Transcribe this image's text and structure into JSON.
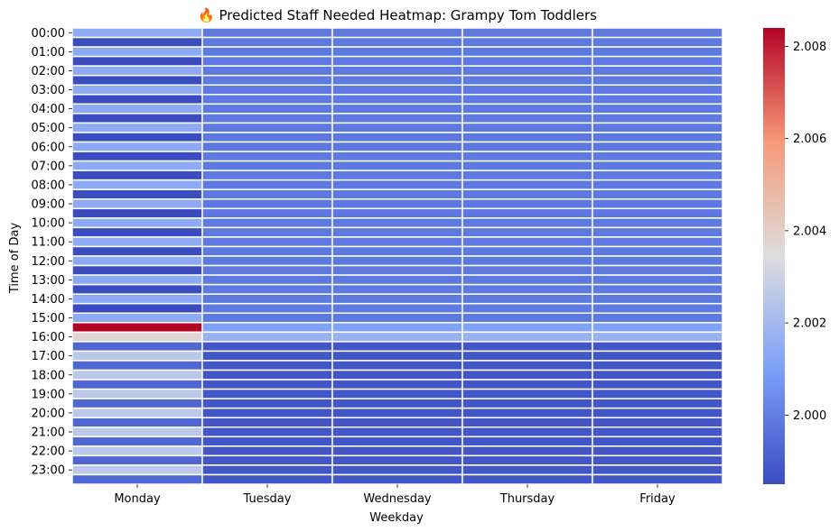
{
  "chart_data": {
    "type": "heatmap",
    "title": "🔥 Predicted Staff Needed Heatmap: Grampy Tom Toddlers",
    "xlabel": "Weekday",
    "ylabel": "Time of Day",
    "x_categories": [
      "Monday",
      "Tuesday",
      "Wednesday",
      "Thursday",
      "Friday"
    ],
    "y_tick_labels": [
      "00:00",
      "01:00",
      "02:00",
      "03:00",
      "04:00",
      "05:00",
      "06:00",
      "07:00",
      "08:00",
      "09:00",
      "10:00",
      "11:00",
      "12:00",
      "13:00",
      "14:00",
      "15:00",
      "16:00",
      "17:00",
      "18:00",
      "19:00",
      "20:00",
      "21:00",
      "22:00",
      "23:00"
    ],
    "row_count": 48,
    "colormap": "coolwarm",
    "vmin": 1.9985,
    "vmax": 2.0084,
    "colorbar_ticks": [
      {
        "value": 2.0,
        "label": "2.000"
      },
      {
        "value": 2.002,
        "label": "2.002"
      },
      {
        "value": 2.004,
        "label": "2.004"
      },
      {
        "value": 2.006,
        "label": "2.006"
      },
      {
        "value": 2.008,
        "label": "2.008"
      }
    ],
    "column_rules": {
      "Monday": "pattern",
      "Tuesday": "constant",
      "Wednesday": "constant",
      "Thursday": "constant",
      "Friday": "constant"
    },
    "values": {
      "monday_rows_0_30": [
        2.0014,
        1.9985
      ],
      "monday_row_31": 2.0084,
      "monday_row_32": 2.0037,
      "monday_rows_33_47": [
        1.9993,
        2.0026
      ],
      "other_rows_0_30": 1.99985,
      "other_row_31": 2.0011,
      "other_row_32": 2.0017,
      "other_rows_33_47": 1.9988
    },
    "linecolor": "#ffffff",
    "grid": false
  }
}
